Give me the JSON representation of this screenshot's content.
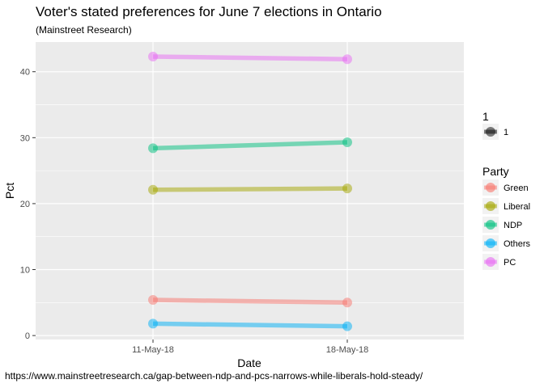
{
  "chart_data": {
    "type": "line",
    "title": "Voter's stated preferences for June 7 elections in Ontario",
    "subtitle": "(Mainstreet Research)",
    "caption": "https://www.mainstreetresearch.ca/gap-between-ndp-and-pcs-narrows-while-liberals-hold-steady/",
    "xlabel": "Date",
    "ylabel": "Pct",
    "categories": [
      "11-May-18",
      "18-May-18"
    ],
    "ylim": [
      -0.6,
      44.5
    ],
    "yticks": [
      0,
      10,
      20,
      30,
      40
    ],
    "grid": true,
    "legend_placement": "right",
    "size_legend": {
      "title": "1",
      "items": [
        "1"
      ]
    },
    "color_legend": {
      "title": "Party"
    },
    "series": [
      {
        "name": "Green",
        "color": "#F8766D",
        "values": [
          5.4,
          5.0
        ]
      },
      {
        "name": "Liberal",
        "color": "#A3A500",
        "values": [
          22.1,
          22.3
        ]
      },
      {
        "name": "NDP",
        "color": "#00BF7D",
        "values": [
          28.4,
          29.3
        ]
      },
      {
        "name": "Others",
        "color": "#00B0F6",
        "values": [
          1.8,
          1.4
        ]
      },
      {
        "name": "PC",
        "color": "#E76BF3",
        "values": [
          42.3,
          41.9
        ]
      }
    ]
  }
}
